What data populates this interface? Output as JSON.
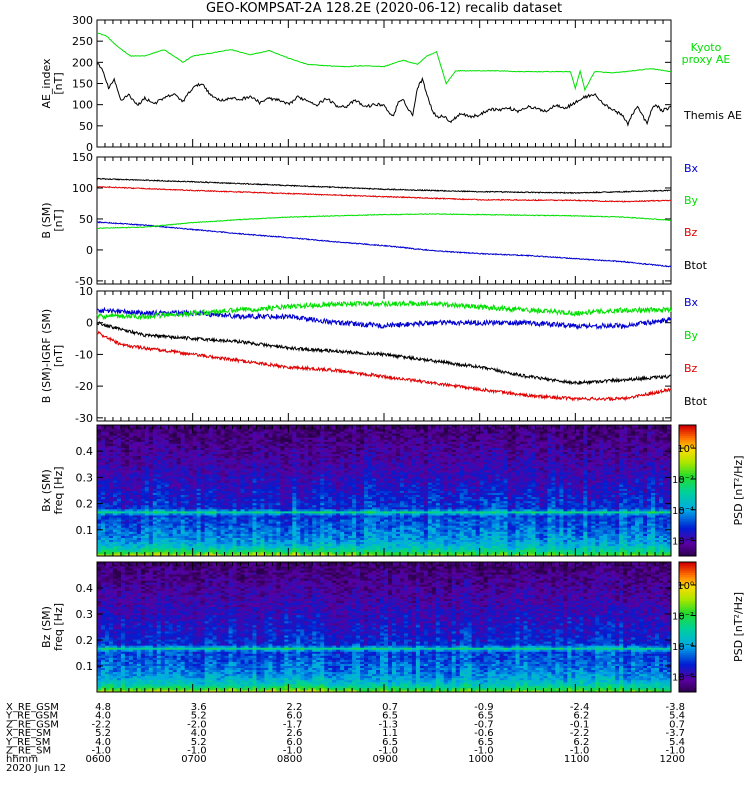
{
  "title": "GEO-KOMPSAT-2A 128.2E (2020-06-12) recalib dataset",
  "colors": {
    "black": "#000000",
    "green": "#00e000",
    "red": "#e00000",
    "blue": "#0000d0"
  },
  "chart_data": [
    {
      "type": "line",
      "ylabel": [
        "AE_index",
        "[nT]"
      ],
      "ylim": [
        0,
        300
      ],
      "yticks": [
        0,
        50,
        100,
        150,
        200,
        250,
        300
      ],
      "x": "shared time axis, 0600-1200 hhmm",
      "series": [
        {
          "name": "Kyoto proxy AE",
          "name_lines": [
            "Kyoto",
            "proxy AE"
          ],
          "color": "#00e000",
          "t": [
            6.0,
            6.1,
            6.2,
            6.35,
            6.5,
            6.7,
            6.9,
            7.0,
            7.2,
            7.4,
            7.6,
            7.8,
            8.0,
            8.2,
            8.4,
            8.6,
            8.8,
            9.0,
            9.2,
            9.35,
            9.45,
            9.55,
            9.65,
            9.75,
            9.85,
            10.0,
            10.2,
            10.4,
            10.6,
            10.8,
            10.95,
            11.0,
            11.05,
            11.1,
            11.2,
            11.4,
            11.6,
            11.8,
            12.0
          ],
          "v": [
            270,
            262,
            240,
            215,
            215,
            230,
            200,
            215,
            222,
            230,
            218,
            228,
            210,
            195,
            192,
            190,
            192,
            190,
            205,
            195,
            215,
            225,
            150,
            180,
            180,
            180,
            180,
            178,
            178,
            178,
            178,
            138,
            180,
            135,
            178,
            175,
            180,
            185,
            178
          ]
        },
        {
          "name": "Themis AE",
          "name_lines": [
            "Themis AE"
          ],
          "color": "#000000",
          "t": [
            6.0,
            6.05,
            6.12,
            6.18,
            6.25,
            6.33,
            6.42,
            6.5,
            6.6,
            6.7,
            6.8,
            6.9,
            7.0,
            7.1,
            7.2,
            7.3,
            7.4,
            7.5,
            7.6,
            7.7,
            7.8,
            7.9,
            8.0,
            8.1,
            8.2,
            8.3,
            8.4,
            8.5,
            8.6,
            8.7,
            8.8,
            8.9,
            9.0,
            9.05,
            9.1,
            9.15,
            9.2,
            9.3,
            9.35,
            9.4,
            9.45,
            9.5,
            9.55,
            9.6,
            9.7,
            9.8,
            9.9,
            10.0,
            10.1,
            10.2,
            10.3,
            10.4,
            10.5,
            10.6,
            10.7,
            10.8,
            10.9,
            11.0,
            11.1,
            11.2,
            11.3,
            11.4,
            11.5,
            11.55,
            11.6,
            11.65,
            11.7,
            11.75,
            11.8,
            11.85,
            11.9,
            11.95,
            12.0
          ],
          "v": [
            198,
            185,
            140,
            158,
            110,
            125,
            98,
            115,
            103,
            115,
            125,
            108,
            140,
            150,
            120,
            110,
            115,
            112,
            120,
            105,
            115,
            110,
            100,
            118,
            110,
            100,
            115,
            98,
            95,
            110,
            95,
            100,
            100,
            80,
            75,
            105,
            110,
            75,
            140,
            160,
            125,
            90,
            70,
            75,
            60,
            80,
            72,
            75,
            90,
            88,
            92,
            85,
            95,
            90,
            85,
            100,
            92,
            105,
            118,
            125,
            100,
            88,
            72,
            55,
            80,
            95,
            75,
            55,
            90,
            100,
            85,
            90,
            95
          ]
        }
      ]
    },
    {
      "type": "line",
      "ylabel": [
        "B (SM)",
        "[nT]"
      ],
      "ylim": [
        -55,
        150
      ],
      "yticks": [
        -50,
        0,
        50,
        100,
        150
      ],
      "series": [
        {
          "name": "Btot",
          "color": "#000000",
          "t": [
            6,
            7,
            8,
            9,
            10,
            11,
            12
          ],
          "v": [
            115,
            110,
            104,
            98,
            94,
            92,
            96
          ]
        },
        {
          "name": "Bx",
          "color": "#0000d0",
          "t": [
            6,
            6.5,
            7,
            7.5,
            8,
            8.5,
            9,
            9.5,
            10,
            10.5,
            11,
            11.5,
            12
          ],
          "v": [
            45,
            40,
            33,
            26,
            20,
            13,
            7,
            -1,
            -6,
            -9,
            -14,
            -19,
            -27
          ]
        },
        {
          "name": "By",
          "color": "#00e000",
          "t": [
            6,
            6.5,
            7,
            7.5,
            8,
            8.5,
            9,
            9.5,
            10,
            10.5,
            11,
            11.5,
            12
          ],
          "v": [
            35,
            37,
            44,
            49,
            53,
            55,
            57,
            58,
            57,
            56,
            55,
            53,
            48
          ]
        },
        {
          "name": "Bz",
          "color": "#e00000",
          "t": [
            6,
            7,
            8,
            9,
            10,
            11,
            11.5,
            12
          ],
          "v": [
            102,
            96,
            91,
            86,
            81,
            80,
            78,
            80
          ]
        }
      ],
      "legend": [
        "Bx",
        "By",
        "Bz",
        "Btot"
      ]
    },
    {
      "type": "line",
      "ylabel": [
        "B (SM)-IGRF (SM)",
        "[nT]"
      ],
      "ylim": [
        -31,
        10
      ],
      "yticks": [
        -30,
        -20,
        -10,
        0,
        10
      ],
      "series": [
        {
          "name": "Bx",
          "color": "#0000d0",
          "t": [
            6,
            6.5,
            7,
            7.5,
            8,
            8.5,
            9,
            9.5,
            10,
            10.5,
            11,
            11.5,
            12
          ],
          "v": [
            4,
            3,
            3,
            2,
            2,
            0,
            -1,
            0,
            0,
            0,
            -1,
            -1,
            1
          ]
        },
        {
          "name": "By",
          "color": "#00e000",
          "t": [
            6,
            6.5,
            7,
            7.5,
            8,
            8.5,
            9,
            9.5,
            10,
            10.5,
            11,
            11.5,
            12
          ],
          "v": [
            2,
            2,
            3,
            4,
            5,
            6,
            6,
            6,
            5,
            4,
            3,
            4,
            4
          ]
        },
        {
          "name": "Btot",
          "color": "#000000",
          "t": [
            6,
            6.25,
            6.5,
            7,
            7.5,
            8,
            8.5,
            9,
            9.5,
            10,
            10.5,
            11,
            11.5,
            12
          ],
          "v": [
            0,
            -2,
            -4,
            -5,
            -6,
            -8,
            -9,
            -10,
            -12,
            -14,
            -17,
            -19,
            -18,
            -17
          ]
        },
        {
          "name": "Bz",
          "color": "#e00000",
          "t": [
            6,
            6.25,
            6.5,
            7,
            7.5,
            8,
            8.5,
            9,
            9.5,
            10,
            10.5,
            11,
            11.5,
            12
          ],
          "v": [
            -3,
            -7,
            -8,
            -10,
            -12,
            -14,
            -15,
            -17,
            -19,
            -21,
            -23,
            -24,
            -24,
            -21
          ]
        }
      ],
      "legend": [
        "Bx",
        "By",
        "Bz",
        "Btot"
      ]
    },
    {
      "type": "heatmap",
      "ylabel": [
        "Bx (SM)",
        "freq [Hz]"
      ],
      "ylim": [
        0,
        0.5
      ],
      "yticks": [
        0.1,
        0.2,
        0.3,
        0.4
      ],
      "colorbar_label": "PSD [nT²/Hz]",
      "colorbar_ticks": [
        "10⁰",
        "10⁻²",
        "10⁻⁴",
        "10⁻⁶"
      ],
      "colorbar_exponents": [
        0,
        -2,
        -4,
        -6
      ],
      "line_freq_hz": 0.167,
      "log10_psd_range": [
        -7,
        1.5
      ]
    },
    {
      "type": "heatmap",
      "ylabel": [
        "Bz (SM)",
        "freq [Hz]"
      ],
      "ylim": [
        0,
        0.5
      ],
      "yticks": [
        0.1,
        0.2,
        0.3,
        0.4
      ],
      "colorbar_label": "PSD [nT²/Hz]",
      "colorbar_ticks": [
        "10⁰",
        "10⁻²",
        "10⁻⁴",
        "10⁻⁶"
      ],
      "colorbar_exponents": [
        0,
        -2,
        -4,
        -6
      ],
      "line_freq_hz": 0.167,
      "log10_psd_range": [
        -7,
        1.5
      ]
    }
  ],
  "orbit_table": {
    "row_labels": [
      "X_RE_GSM",
      "Y_RE_GSM",
      "Z_RE_GSM",
      "X_RE_SM",
      "Y_RE_SM",
      "Z_RE_SM",
      "hhmm",
      "2020 Jun 12"
    ],
    "rows": [
      [
        "4.8",
        "3.6",
        "2.2",
        "0.7",
        "-0.9",
        "-2.4",
        "-3.8"
      ],
      [
        "4.0",
        "5.2",
        "6.0",
        "6.5",
        "6.5",
        "6.2",
        "5.4"
      ],
      [
        "-2.2",
        "-2.0",
        "-1.7",
        "-1.3",
        "-0.7",
        "-0.1",
        "0.7"
      ],
      [
        "5.2",
        "4.0",
        "2.6",
        "1.1",
        "-0.6",
        "-2.2",
        "-3.7"
      ],
      [
        "4.0",
        "5.2",
        "6.0",
        "6.5",
        "6.5",
        "6.2",
        "5.4"
      ],
      [
        "-1.0",
        "-1.0",
        "-1.0",
        "-1.0",
        "-1.0",
        "-1.0",
        "-1.0"
      ],
      [
        "0600",
        "0700",
        "0800",
        "0900",
        "1000",
        "1100",
        "1200"
      ]
    ]
  }
}
